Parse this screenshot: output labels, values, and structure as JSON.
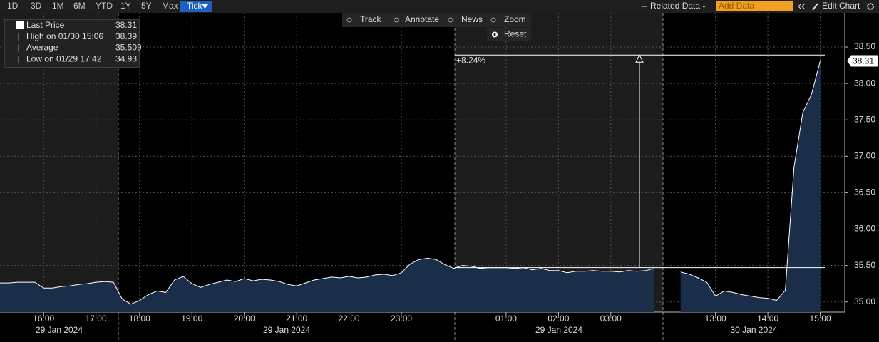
{
  "toolbar": {
    "ranges": [
      "1D",
      "3D",
      "1M",
      "6M",
      "YTD",
      "1Y",
      "5Y",
      "Max",
      "Tick"
    ],
    "active_range": "Tick",
    "related": "Related Data",
    "add_data_placeholder": "Add Data",
    "edit": "Edit Chart",
    "tools": [
      "Track",
      "Annotate",
      "News",
      "Zoom"
    ],
    "reset": "Reset"
  },
  "chart_data": {
    "type": "area",
    "categories": [
      null,
      null,
      null,
      null,
      null,
      "16:00",
      null,
      null,
      null,
      null,
      null,
      "17:00",
      null,
      null,
      null,
      null,
      "18:00",
      null,
      null,
      null,
      null,
      null,
      "19:00",
      null,
      null,
      null,
      null,
      null,
      "20:00",
      null,
      null,
      null,
      null,
      null,
      "21:00",
      null,
      null,
      null,
      null,
      null,
      "22:00",
      null,
      null,
      null,
      null,
      null,
      "23:00",
      null,
      null,
      null,
      null,
      null,
      null,
      null,
      null,
      null,
      null,
      null,
      "01:00",
      null,
      null,
      null,
      null,
      null,
      "02:00",
      null,
      null,
      null,
      null,
      null,
      "03:00",
      null,
      null,
      null,
      null,
      null,
      null,
      null,
      null,
      null,
      null,
      null,
      "13:00",
      null,
      null,
      null,
      null,
      null,
      "14:00",
      null,
      null,
      null,
      null,
      null,
      "15:00",
      null
    ],
    "x_groups": [
      "29 Jan 2024",
      "29 Jan 2024",
      "29 Jan 2024",
      "30 Jan 2024"
    ],
    "series": [
      {
        "color": "#ffffff",
        "fill": "#1a2e4a",
        "values": [
          35.26,
          35.26,
          35.27,
          35.27,
          35.27,
          35.19,
          35.19,
          35.21,
          35.22,
          35.24,
          35.25,
          35.27,
          35.28,
          35.27,
          35.04,
          34.97,
          35.02,
          35.1,
          35.15,
          35.13,
          35.3,
          35.35,
          35.25,
          35.2,
          35.24,
          35.27,
          35.3,
          35.28,
          35.32,
          35.29,
          35.31,
          35.3,
          35.28,
          35.24,
          35.22,
          35.26,
          35.3,
          35.32,
          35.34,
          35.33,
          35.35,
          35.33,
          35.34,
          35.37,
          35.38,
          35.36,
          35.4,
          35.52,
          35.58,
          35.6,
          35.58,
          35.51,
          35.46,
          35.5,
          35.49,
          35.46,
          35.47,
          35.47,
          35.47,
          35.46,
          35.47,
          35.44,
          35.46,
          35.43,
          35.43,
          35.4,
          35.42,
          35.42,
          35.43,
          35.42,
          35.42,
          35.41,
          35.43,
          35.42,
          35.43,
          35.46,
          null,
          null,
          35.41,
          35.38,
          35.33,
          35.27,
          35.08,
          35.15,
          35.13,
          35.1,
          35.08,
          35.06,
          35.05,
          35.02,
          35.16,
          36.85,
          37.6,
          37.85,
          38.31,
          null
        ]
      }
    ],
    "ylim": [
      34.86,
      38.97
    ],
    "yticks": [
      {
        "value": 35,
        "label": "35.00"
      },
      {
        "value": 35.5,
        "label": "35.50"
      },
      {
        "value": 36,
        "label": "36.00"
      },
      {
        "value": 36.5,
        "label": "36.50"
      },
      {
        "value": 37,
        "label": "37.00"
      },
      {
        "value": 37.5,
        "label": "37.50"
      },
      {
        "value": 38,
        "label": "38.00"
      },
      {
        "value": 38.5,
        "label": "38.50"
      }
    ],
    "grid": true,
    "stats": [
      {
        "label": "Last Price",
        "value": 38.31
      },
      {
        "label": "High on 01/30 15:06",
        "value": 38.39
      },
      {
        "label": "Average",
        "value": 35.509
      },
      {
        "label": "Low on 01/29 17:42",
        "value": 34.93
      }
    ],
    "annotation": {
      "label": "+8.24%",
      "from": 35.47
    }
  }
}
